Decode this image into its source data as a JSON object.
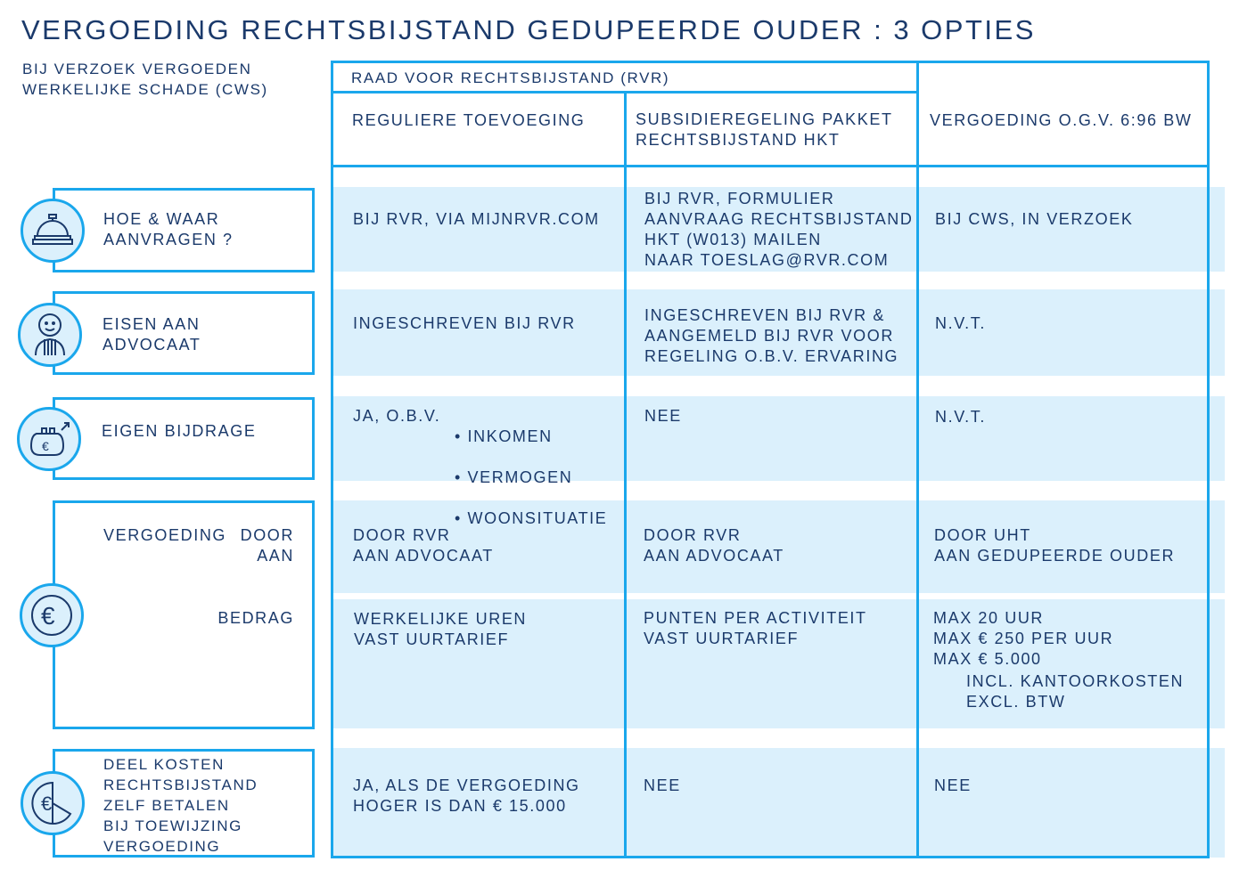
{
  "title": "Vergoeding rechtsbijstand gedupeerde ouder : 3 opties",
  "cws_note": "Bij verzoek vergoeden\nwerkelijke schade (CWS)",
  "colors": {
    "line": "#1aa7ec",
    "band": "#dbf0fc",
    "text": "#1b3a6b"
  },
  "header": {
    "group": "Raad voor rechtsbijstand (RvR)",
    "columns": [
      "Reguliere toevoeging",
      "Subsidieregeling pakket\nrechtsbijstand HKT",
      "Vergoeding o.g.v. 6:96 BW"
    ]
  },
  "rows": [
    {
      "label": "Hoe & waar\naanvragen ?",
      "icon": "service-bell-icon",
      "cells": [
        "Bij RvR, via mijnrvr.com",
        "Bij RvR, formulier\naanvraag rechtsbijstand\nHKT (W013) mailen\nnaar toeslag@rvr.com",
        "Bij CWS, in verzoek"
      ]
    },
    {
      "label": "Eisen aan\nadvocaat",
      "icon": "lawyer-icon",
      "cells": [
        "Ingeschreven bij RvR",
        "Ingeschreven bij RvR &\naangemeld bij RvR voor\nregeling o.b.v. ervaring",
        "N.v.t."
      ]
    },
    {
      "label": "Eigen bijdrage",
      "icon": "purse-euro-icon",
      "cells": [
        "Ja, o.b.v.",
        "Nee",
        "N.v.t."
      ],
      "bullets": [
        "Inkomen",
        "Vermogen",
        "Woonsituatie"
      ]
    },
    {
      "label": "Vergoeding",
      "icon": "euro-coin-icon",
      "sublabels": [
        "door\naan",
        "bedrag"
      ],
      "cells_a": [
        "Door RvR\naan advocaat",
        "Door RvR\naan advocaat",
        "Door UHT\naan gedupeerde ouder"
      ],
      "cells_b": [
        "Werkelijke uren\nvast uurtarief",
        "Punten per activiteit\nvast uurtarief",
        "Max 20 uur\nmax € 250 per uur\nmax € 5.000"
      ],
      "note": "incl. kantoorkosten\nexcl. BTW"
    },
    {
      "label": "Deel kosten\nrechtsbijstand\nzelf betalen\nbij toewijzing\nvergoeding",
      "icon": "euro-pie-icon",
      "cells": [
        "Ja, als de vergoeding\nhoger is dan € 15.000",
        "Nee",
        "Nee"
      ]
    }
  ]
}
